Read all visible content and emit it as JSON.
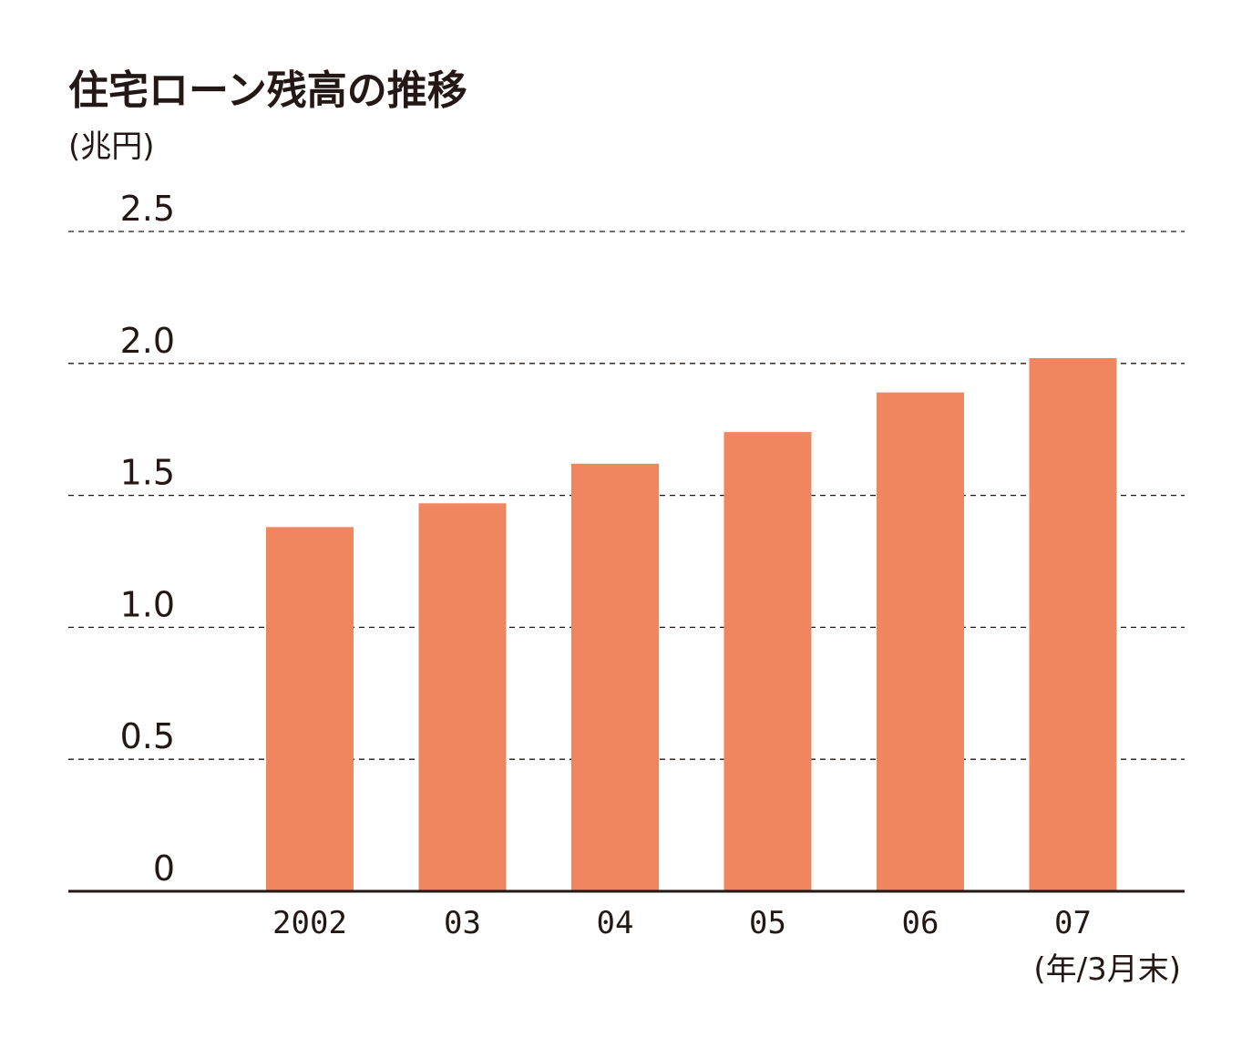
{
  "colors": {
    "bar": "#f0865f",
    "text": "#231815"
  },
  "chart_data": {
    "type": "bar",
    "title": "住宅ローン残高の推移",
    "ylabel": "(兆円)",
    "xlabel": "(年/3月末)",
    "categories": [
      "2002",
      "03",
      "04",
      "05",
      "06",
      "07"
    ],
    "values": [
      1.38,
      1.47,
      1.62,
      1.74,
      1.89,
      2.02
    ],
    "ylim": [
      0,
      2.5
    ],
    "yticks": [
      "0",
      "0.5",
      "1.0",
      "1.5",
      "2.0",
      "2.5"
    ],
    "grid": true
  }
}
